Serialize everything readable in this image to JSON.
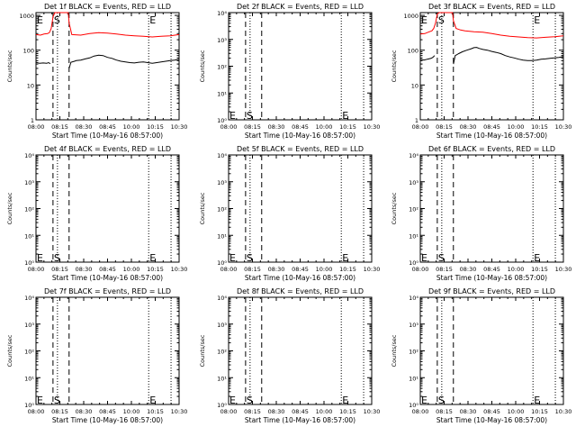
{
  "figure": {
    "background": "#ffffff",
    "axis_color": "#000000"
  },
  "chart_data": [
    {
      "type": "line",
      "title": "Det 1f BLACK = Events, RED = LLD",
      "xlabel": "Start Time (10-May-16 08:57:00)",
      "ylabel": "Counts/sec",
      "x_ticks": [
        "08:00",
        "08:15",
        "08:30",
        "08:45",
        "10:00",
        "10:15",
        "10:30"
      ],
      "y_scale": "log",
      "y_ticks": [
        "1",
        "10",
        "100",
        "1000"
      ],
      "ylim": [
        1,
        1200
      ],
      "markers": [
        {
          "label": "E",
          "x": 0.0,
          "style": "dotted"
        },
        {
          "label": "S",
          "x": 19.0,
          "style": "dashed"
        },
        {
          "label": "",
          "x": 24.0,
          "style": "dotted"
        },
        {
          "label": "",
          "x": 37.0,
          "style": "dashed"
        },
        {
          "label": "E",
          "x": 126.0,
          "style": "dotted"
        },
        {
          "label": "",
          "x": 151.0,
          "style": "dotted"
        }
      ],
      "series": [
        {
          "color": "#ff0000",
          "points": [
            [
              0,
              280
            ],
            [
              5,
              270
            ],
            [
              9,
              290
            ],
            [
              13,
              300
            ],
            [
              15,
              320
            ],
            [
              17,
              420
            ],
            [
              19,
              900
            ],
            [
              21,
              1200
            ],
            [
              36,
              1200
            ],
            [
              37,
              600
            ],
            [
              40,
              280
            ],
            [
              50,
              270
            ],
            [
              60,
              300
            ],
            [
              70,
              320
            ],
            [
              80,
              310
            ],
            [
              90,
              290
            ],
            [
              100,
              270
            ],
            [
              110,
              260
            ],
            [
              120,
              250
            ],
            [
              130,
              240
            ],
            [
              140,
              250
            ],
            [
              150,
              260
            ],
            [
              160,
              280
            ]
          ]
        },
        {
          "color": "#000000",
          "points": [
            [
              0,
              45
            ],
            [
              4,
              42
            ],
            [
              8,
              43
            ],
            [
              12,
              42
            ],
            [
              14,
              44
            ],
            [
              16,
              41
            ],
            [
              36,
              null
            ],
            [
              37,
              30
            ],
            [
              39,
              45
            ],
            [
              43,
              48
            ],
            [
              45,
              50
            ],
            [
              50,
              52
            ],
            [
              55,
              56
            ],
            [
              60,
              60
            ],
            [
              65,
              68
            ],
            [
              70,
              72
            ],
            [
              75,
              70
            ],
            [
              80,
              62
            ],
            [
              85,
              58
            ],
            [
              90,
              52
            ],
            [
              95,
              48
            ],
            [
              100,
              46
            ],
            [
              105,
              44
            ],
            [
              110,
              43
            ],
            [
              115,
              45
            ],
            [
              120,
              46
            ],
            [
              125,
              44
            ],
            [
              130,
              42
            ],
            [
              135,
              44
            ],
            [
              140,
              46
            ],
            [
              145,
              48
            ],
            [
              150,
              50
            ],
            [
              155,
              52
            ],
            [
              160,
              55
            ]
          ]
        }
      ]
    },
    {
      "type": "line",
      "title": "Det 2f BLACK = Events, RED = LLD",
      "xlabel": "Start Time (10-May-16 08:57:00)",
      "ylabel": "Counts/sec",
      "x_ticks": [
        "08:00",
        "08:15",
        "08:30",
        "08:45",
        "10:00",
        "10:15",
        "10:30"
      ],
      "y_scale": "log",
      "y_ticks": [
        "10⁰",
        "10¹",
        "10²",
        "10³",
        "10⁴"
      ],
      "ylim": [
        1,
        10000
      ],
      "markers": [
        {
          "label": "E",
          "x": 0.0,
          "style": "dotted"
        },
        {
          "label": "S",
          "x": 19.0,
          "style": "dashed"
        },
        {
          "label": "",
          "x": 24.0,
          "style": "dotted"
        },
        {
          "label": "",
          "x": 37.0,
          "style": "dashed"
        },
        {
          "label": "E",
          "x": 126.0,
          "style": "dotted"
        },
        {
          "label": "",
          "x": 151.0,
          "style": "dotted"
        }
      ],
      "series": []
    },
    {
      "type": "line",
      "title": "Det 3f BLACK = Events, RED = LLD",
      "xlabel": "Start Time (10-May-16 08:57:00)",
      "ylabel": "Counts/sec",
      "x_ticks": [
        "08:00",
        "08:15",
        "08:30",
        "08:45",
        "10:00",
        "10:15",
        "10:30"
      ],
      "y_scale": "log",
      "y_ticks": [
        "1",
        "10",
        "100",
        "1000"
      ],
      "ylim": [
        1,
        1200
      ],
      "markers": [
        {
          "label": "E",
          "x": 0.0,
          "style": "dotted"
        },
        {
          "label": "S",
          "x": 19.0,
          "style": "dashed"
        },
        {
          "label": "",
          "x": 24.0,
          "style": "dotted"
        },
        {
          "label": "",
          "x": 37.0,
          "style": "dashed"
        },
        {
          "label": "E",
          "x": 126.0,
          "style": "dotted"
        },
        {
          "label": "",
          "x": 151.0,
          "style": "dotted"
        }
      ],
      "series": [
        {
          "color": "#ff0000",
          "points": [
            [
              0,
              290
            ],
            [
              5,
              300
            ],
            [
              9,
              330
            ],
            [
              13,
              360
            ],
            [
              15,
              420
            ],
            [
              17,
              600
            ],
            [
              19,
              1100
            ],
            [
              21,
              1200
            ],
            [
              36,
              1200
            ],
            [
              37,
              700
            ],
            [
              40,
              420
            ],
            [
              45,
              380
            ],
            [
              50,
              360
            ],
            [
              55,
              350
            ],
            [
              60,
              340
            ],
            [
              70,
              330
            ],
            [
              80,
              300
            ],
            [
              90,
              270
            ],
            [
              100,
              250
            ],
            [
              110,
              240
            ],
            [
              120,
              230
            ],
            [
              130,
              225
            ],
            [
              140,
              235
            ],
            [
              150,
              245
            ],
            [
              160,
              260
            ]
          ]
        },
        {
          "color": "#000000",
          "points": [
            [
              0,
              55
            ],
            [
              4,
              52
            ],
            [
              8,
              55
            ],
            [
              12,
              58
            ],
            [
              14,
              62
            ],
            [
              16,
              70
            ],
            [
              36,
              null
            ],
            [
              37,
              40
            ],
            [
              39,
              70
            ],
            [
              43,
              80
            ],
            [
              47,
              90
            ],
            [
              52,
              100
            ],
            [
              57,
              110
            ],
            [
              60,
              118
            ],
            [
              63,
              120
            ],
            [
              66,
              112
            ],
            [
              70,
              105
            ],
            [
              75,
              100
            ],
            [
              80,
              92
            ],
            [
              85,
              86
            ],
            [
              90,
              80
            ],
            [
              95,
              70
            ],
            [
              100,
              64
            ],
            [
              105,
              60
            ],
            [
              110,
              55
            ],
            [
              115,
              52
            ],
            [
              120,
              50
            ],
            [
              125,
              50
            ],
            [
              130,
              52
            ],
            [
              135,
              55
            ],
            [
              140,
              56
            ],
            [
              145,
              58
            ],
            [
              150,
              60
            ],
            [
              155,
              62
            ],
            [
              160,
              65
            ]
          ]
        }
      ]
    },
    {
      "type": "line",
      "title": "Det 4f BLACK = Events, RED = LLD",
      "xlabel": "Start Time (10-May-16 08:57:00)",
      "ylabel": "Counts/sec",
      "x_ticks": [
        "08:00",
        "08:15",
        "08:30",
        "08:45",
        "10:00",
        "10:15",
        "10:30"
      ],
      "y_scale": "log",
      "y_ticks": [
        "10⁰",
        "10¹",
        "10²",
        "10³",
        "10⁴"
      ],
      "ylim": [
        1,
        10000
      ],
      "markers": [
        {
          "label": "E",
          "x": 0.0,
          "style": "dotted"
        },
        {
          "label": "S",
          "x": 19.0,
          "style": "dashed"
        },
        {
          "label": "",
          "x": 24.0,
          "style": "dotted"
        },
        {
          "label": "",
          "x": 37.0,
          "style": "dashed"
        },
        {
          "label": "E",
          "x": 126.0,
          "style": "dotted"
        },
        {
          "label": "",
          "x": 151.0,
          "style": "dotted"
        }
      ],
      "series": []
    },
    {
      "type": "line",
      "title": "Det 5f BLACK = Events, RED = LLD",
      "xlabel": "Start Time (10-May-16 08:57:00)",
      "ylabel": "Counts/sec",
      "x_ticks": [
        "08:00",
        "08:15",
        "08:30",
        "08:45",
        "10:00",
        "10:15",
        "10:30"
      ],
      "y_scale": "log",
      "y_ticks": [
        "10⁰",
        "10¹",
        "10²",
        "10³",
        "10⁴"
      ],
      "ylim": [
        1,
        10000
      ],
      "markers": [
        {
          "label": "E",
          "x": 0.0,
          "style": "dotted"
        },
        {
          "label": "S",
          "x": 19.0,
          "style": "dashed"
        },
        {
          "label": "",
          "x": 24.0,
          "style": "dotted"
        },
        {
          "label": "",
          "x": 37.0,
          "style": "dashed"
        },
        {
          "label": "E",
          "x": 126.0,
          "style": "dotted"
        },
        {
          "label": "",
          "x": 151.0,
          "style": "dotted"
        }
      ],
      "series": []
    },
    {
      "type": "line",
      "title": "Det 6f BLACK = Events, RED = LLD",
      "xlabel": "Start Time (10-May-16 08:57:00)",
      "ylabel": "Counts/sec",
      "x_ticks": [
        "08:00",
        "08:15",
        "08:30",
        "08:45",
        "10:00",
        "10:15",
        "10:30"
      ],
      "y_scale": "log",
      "y_ticks": [
        "10⁰",
        "10¹",
        "10²",
        "10³",
        "10⁴"
      ],
      "ylim": [
        1,
        10000
      ],
      "markers": [
        {
          "label": "E",
          "x": 0.0,
          "style": "dotted"
        },
        {
          "label": "S",
          "x": 19.0,
          "style": "dashed"
        },
        {
          "label": "",
          "x": 24.0,
          "style": "dotted"
        },
        {
          "label": "",
          "x": 37.0,
          "style": "dashed"
        },
        {
          "label": "E",
          "x": 126.0,
          "style": "dotted"
        },
        {
          "label": "",
          "x": 151.0,
          "style": "dotted"
        }
      ],
      "series": []
    },
    {
      "type": "line",
      "title": "Det 7f BLACK = Events, RED = LLD",
      "xlabel": "Start Time (10-May-16 08:57:00)",
      "ylabel": "Counts/sec",
      "x_ticks": [
        "08:00",
        "08:15",
        "08:30",
        "08:45",
        "10:00",
        "10:15",
        "10:30"
      ],
      "y_scale": "log",
      "y_ticks": [
        "10⁰",
        "10¹",
        "10²",
        "10³",
        "10⁴"
      ],
      "ylim": [
        1,
        10000
      ],
      "markers": [
        {
          "label": "E",
          "x": 0.0,
          "style": "dotted"
        },
        {
          "label": "S",
          "x": 19.0,
          "style": "dashed"
        },
        {
          "label": "",
          "x": 24.0,
          "style": "dotted"
        },
        {
          "label": "",
          "x": 37.0,
          "style": "dashed"
        },
        {
          "label": "E",
          "x": 126.0,
          "style": "dotted"
        },
        {
          "label": "",
          "x": 151.0,
          "style": "dotted"
        }
      ],
      "series": []
    },
    {
      "type": "line",
      "title": "Det 8f BLACK = Events, RED = LLD",
      "xlabel": "Start Time (10-May-16 08:57:00)",
      "ylabel": "Counts/sec",
      "x_ticks": [
        "08:00",
        "08:15",
        "08:30",
        "08:45",
        "10:00",
        "10:15",
        "10:30"
      ],
      "y_scale": "log",
      "y_ticks": [
        "10⁰",
        "10¹",
        "10²",
        "10³",
        "10⁴"
      ],
      "ylim": [
        1,
        10000
      ],
      "markers": [
        {
          "label": "E",
          "x": 0.0,
          "style": "dotted"
        },
        {
          "label": "S",
          "x": 19.0,
          "style": "dashed"
        },
        {
          "label": "",
          "x": 24.0,
          "style": "dotted"
        },
        {
          "label": "",
          "x": 37.0,
          "style": "dashed"
        },
        {
          "label": "E",
          "x": 126.0,
          "style": "dotted"
        },
        {
          "label": "",
          "x": 151.0,
          "style": "dotted"
        }
      ],
      "series": []
    },
    {
      "type": "line",
      "title": "Det 9f BLACK = Events, RED = LLD",
      "xlabel": "Start Time (10-May-16 08:57:00)",
      "ylabel": "Counts/sec",
      "x_ticks": [
        "08:00",
        "08:15",
        "08:30",
        "08:45",
        "10:00",
        "10:15",
        "10:30"
      ],
      "y_scale": "log",
      "y_ticks": [
        "10⁰",
        "10¹",
        "10²",
        "10³",
        "10⁴"
      ],
      "ylim": [
        1,
        10000
      ],
      "markers": [
        {
          "label": "E",
          "x": 0.0,
          "style": "dotted"
        },
        {
          "label": "S",
          "x": 19.0,
          "style": "dashed"
        },
        {
          "label": "",
          "x": 24.0,
          "style": "dotted"
        },
        {
          "label": "",
          "x": 37.0,
          "style": "dashed"
        },
        {
          "label": "E",
          "x": 126.0,
          "style": "dotted"
        },
        {
          "label": "",
          "x": 151.0,
          "style": "dotted"
        }
      ],
      "series": []
    }
  ]
}
